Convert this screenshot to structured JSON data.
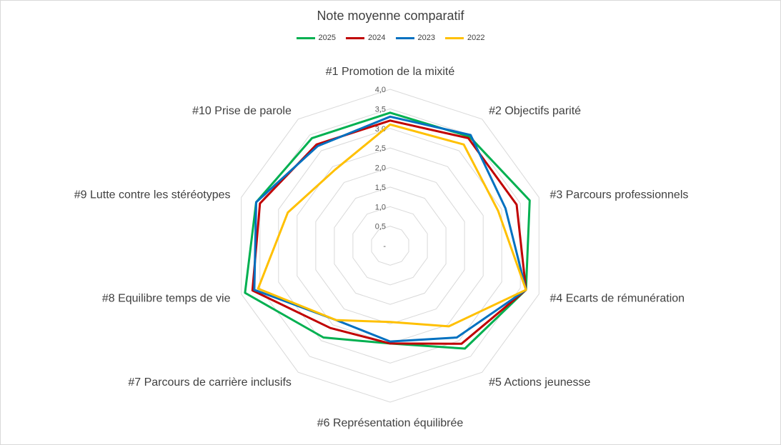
{
  "chart_data": {
    "type": "radar",
    "title": "Note moyenne comparatif",
    "categories": [
      "#1 Promotion de la mixité",
      "#2 Objectifs parité",
      "#3 Parcours professionnels",
      "#4 Ecarts de rémunération",
      "#5 Actions jeunesse",
      "#6 Représentation équilibrée",
      "#7 Parcours de carrière inclusifs",
      "#8 Equilibre temps de vie",
      "#9 Lutte contre les stéréotypes",
      "#10 Prise de parole"
    ],
    "series": [
      {
        "name": "2025",
        "color": "#00b050",
        "values": [
          3.4,
          3.45,
          3.75,
          3.65,
          3.25,
          2.5,
          2.9,
          3.9,
          3.6,
          3.4
        ]
      },
      {
        "name": "2024",
        "color": "#c00000",
        "values": [
          3.2,
          3.4,
          3.4,
          3.65,
          3.1,
          2.5,
          2.6,
          3.7,
          3.5,
          3.2
        ]
      },
      {
        "name": "2023",
        "color": "#0070c0",
        "values": [
          3.3,
          3.5,
          3.1,
          3.65,
          2.9,
          2.45,
          2.35,
          3.65,
          3.6,
          3.15
        ]
      },
      {
        "name": "2022",
        "color": "#ffc000",
        "values": [
          3.1,
          3.2,
          2.9,
          3.65,
          2.55,
          1.95,
          2.35,
          3.55,
          2.75,
          2.4
        ]
      }
    ],
    "rlim": [
      0,
      4
    ],
    "ticks": [
      "-",
      "0,5",
      "1,0",
      "1,5",
      "2,0",
      "2,5",
      "3,0",
      "3,5",
      "4,0"
    ],
    "grid": true,
    "legend_position": "top"
  }
}
